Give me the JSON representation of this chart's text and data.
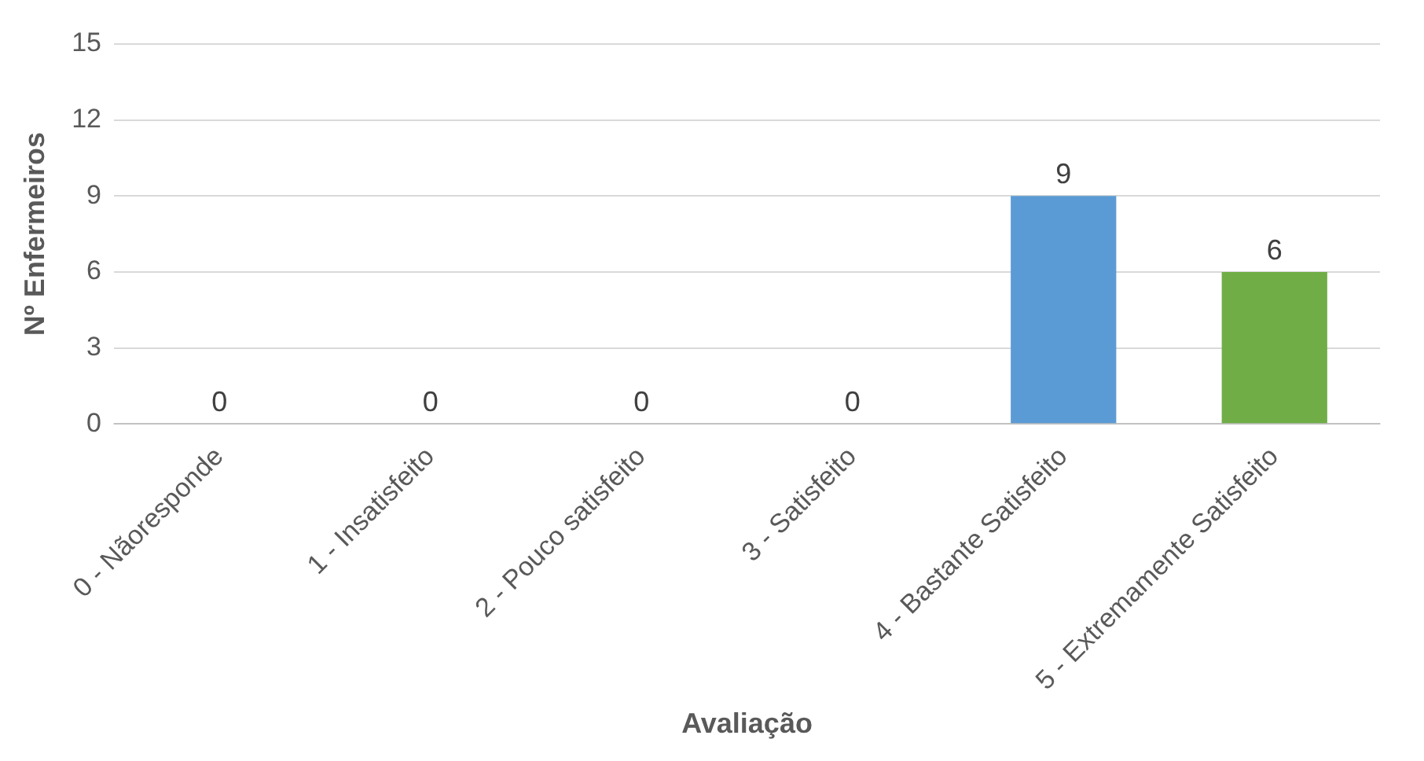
{
  "chart_data": {
    "type": "bar",
    "xlabel": "Avaliação",
    "ylabel": "Nº Enfermeiros",
    "categories": [
      "0 - Nãoresponde",
      "1 - Insatisfeito",
      "2 - Pouco satisfeito",
      "3 - Satisfeito",
      "4 - Bastante Satisfeito",
      "5 - Extremamente Satisfeito"
    ],
    "values": [
      0,
      0,
      0,
      0,
      9,
      6
    ],
    "colors": [
      "#255e91",
      "#1b3a5c",
      "#7f7f7f",
      "#bf9000",
      "#5b9bd5",
      "#70ad47"
    ],
    "ylim": [
      0,
      15
    ],
    "yticks": [
      0,
      3,
      6,
      9,
      12,
      15
    ],
    "grid": "y",
    "data_labels": true
  }
}
